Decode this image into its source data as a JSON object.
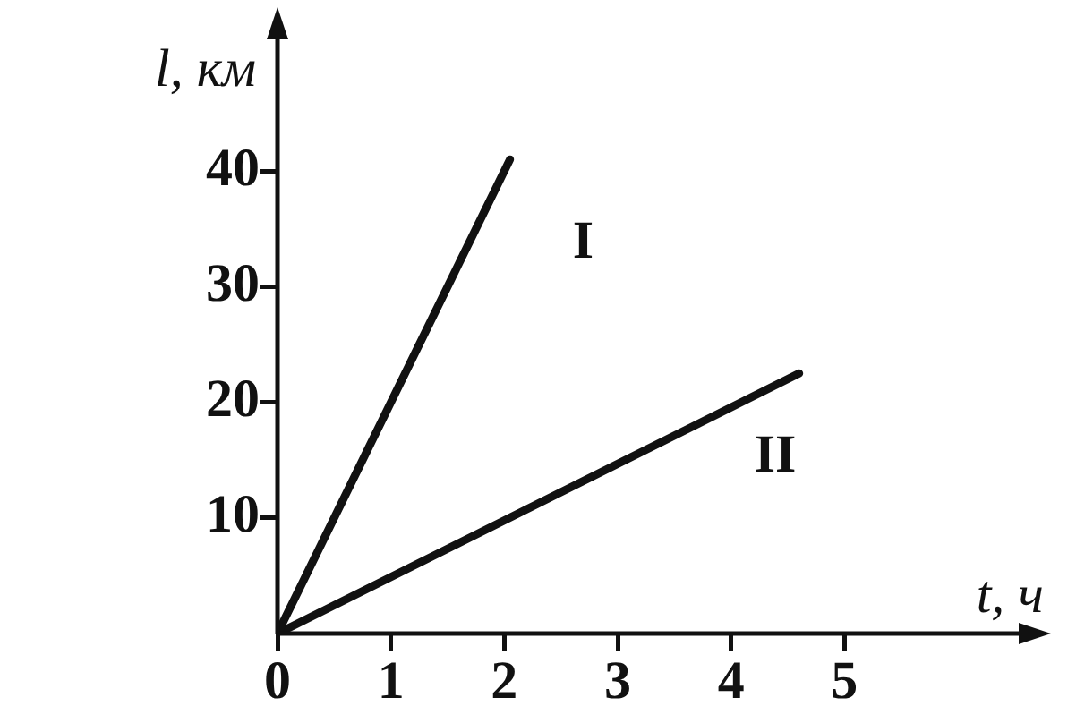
{
  "chart_data": {
    "type": "line",
    "xlabel": "t, ч",
    "ylabel": "l, км",
    "xlim": [
      0,
      6.6
    ],
    "ylim": [
      0,
      52
    ],
    "xticks": [
      0,
      1,
      2,
      3,
      4,
      5
    ],
    "yticks": [
      10,
      20,
      30,
      40
    ],
    "series": [
      {
        "name": "I",
        "color": "#111111",
        "x": [
          0,
          2.05
        ],
        "values": [
          0,
          41
        ]
      },
      {
        "name": "II",
        "color": "#111111",
        "x": [
          0,
          4.6
        ],
        "values": [
          0,
          22.5
        ]
      }
    ],
    "grid": false,
    "legend": false,
    "marker": "none",
    "line_style": "solid"
  }
}
